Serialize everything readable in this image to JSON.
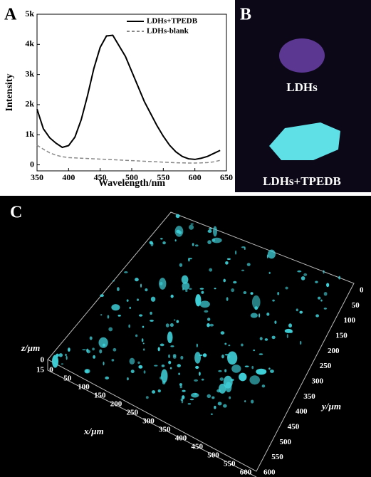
{
  "chart_data": {
    "type": "line",
    "panel_label": "A",
    "xlabel": "Wavelength/nm",
    "ylabel": "Intensity",
    "x": [
      350,
      360,
      370,
      380,
      390,
      400,
      410,
      420,
      430,
      440,
      450,
      460,
      470,
      480,
      490,
      500,
      510,
      520,
      530,
      540,
      550,
      560,
      570,
      580,
      590,
      600,
      610,
      620,
      630,
      640
    ],
    "series": [
      {
        "name": "LDHs+TPEDB",
        "color": "#000000",
        "linestyle": "solid",
        "values": [
          1850,
          1200,
          900,
          720,
          580,
          640,
          920,
          1500,
          2300,
          3200,
          3900,
          4280,
          4300,
          3950,
          3600,
          3100,
          2600,
          2100,
          1700,
          1300,
          950,
          650,
          430,
          280,
          200,
          180,
          220,
          280,
          380,
          480
        ]
      },
      {
        "name": "LDHs-blank",
        "color": "#888888",
        "linestyle": "dashed",
        "values": [
          650,
          520,
          400,
          320,
          270,
          240,
          230,
          220,
          210,
          200,
          190,
          180,
          170,
          160,
          150,
          140,
          130,
          120,
          110,
          100,
          90,
          80,
          70,
          65,
          60,
          60,
          65,
          75,
          100,
          150
        ]
      }
    ],
    "xlim": [
      350,
      650
    ],
    "xticks": [
      350,
      400,
      450,
      500,
      550,
      600,
      650
    ],
    "ylim": [
      -200,
      5000
    ],
    "yticks": [
      0,
      {
        "value": 1000,
        "label": "1k"
      },
      {
        "value": 2000,
        "label": "2k"
      },
      {
        "value": 3000,
        "label": "3k"
      },
      {
        "value": 4000,
        "label": "4k"
      },
      {
        "value": 5000,
        "label": "5k"
      }
    ],
    "legend": "upper right"
  },
  "panel_b": {
    "label": "B",
    "top_caption": "LDHs",
    "bottom_caption": "LDHs+TPEDB"
  },
  "panel_c": {
    "label": "C",
    "z_axis": {
      "title": "z/µm",
      "ticks": [
        "0",
        "15"
      ]
    },
    "x_axis": {
      "title": "x/µm",
      "ticks": [
        "0",
        "50",
        "100",
        "150",
        "200",
        "250",
        "300",
        "350",
        "400",
        "450",
        "500",
        "550",
        "600"
      ]
    },
    "y_axis": {
      "title": "y/µm",
      "ticks": [
        "0",
        "50",
        "100",
        "150",
        "200",
        "250",
        "300",
        "350",
        "400",
        "450",
        "500",
        "550",
        "600"
      ]
    }
  }
}
